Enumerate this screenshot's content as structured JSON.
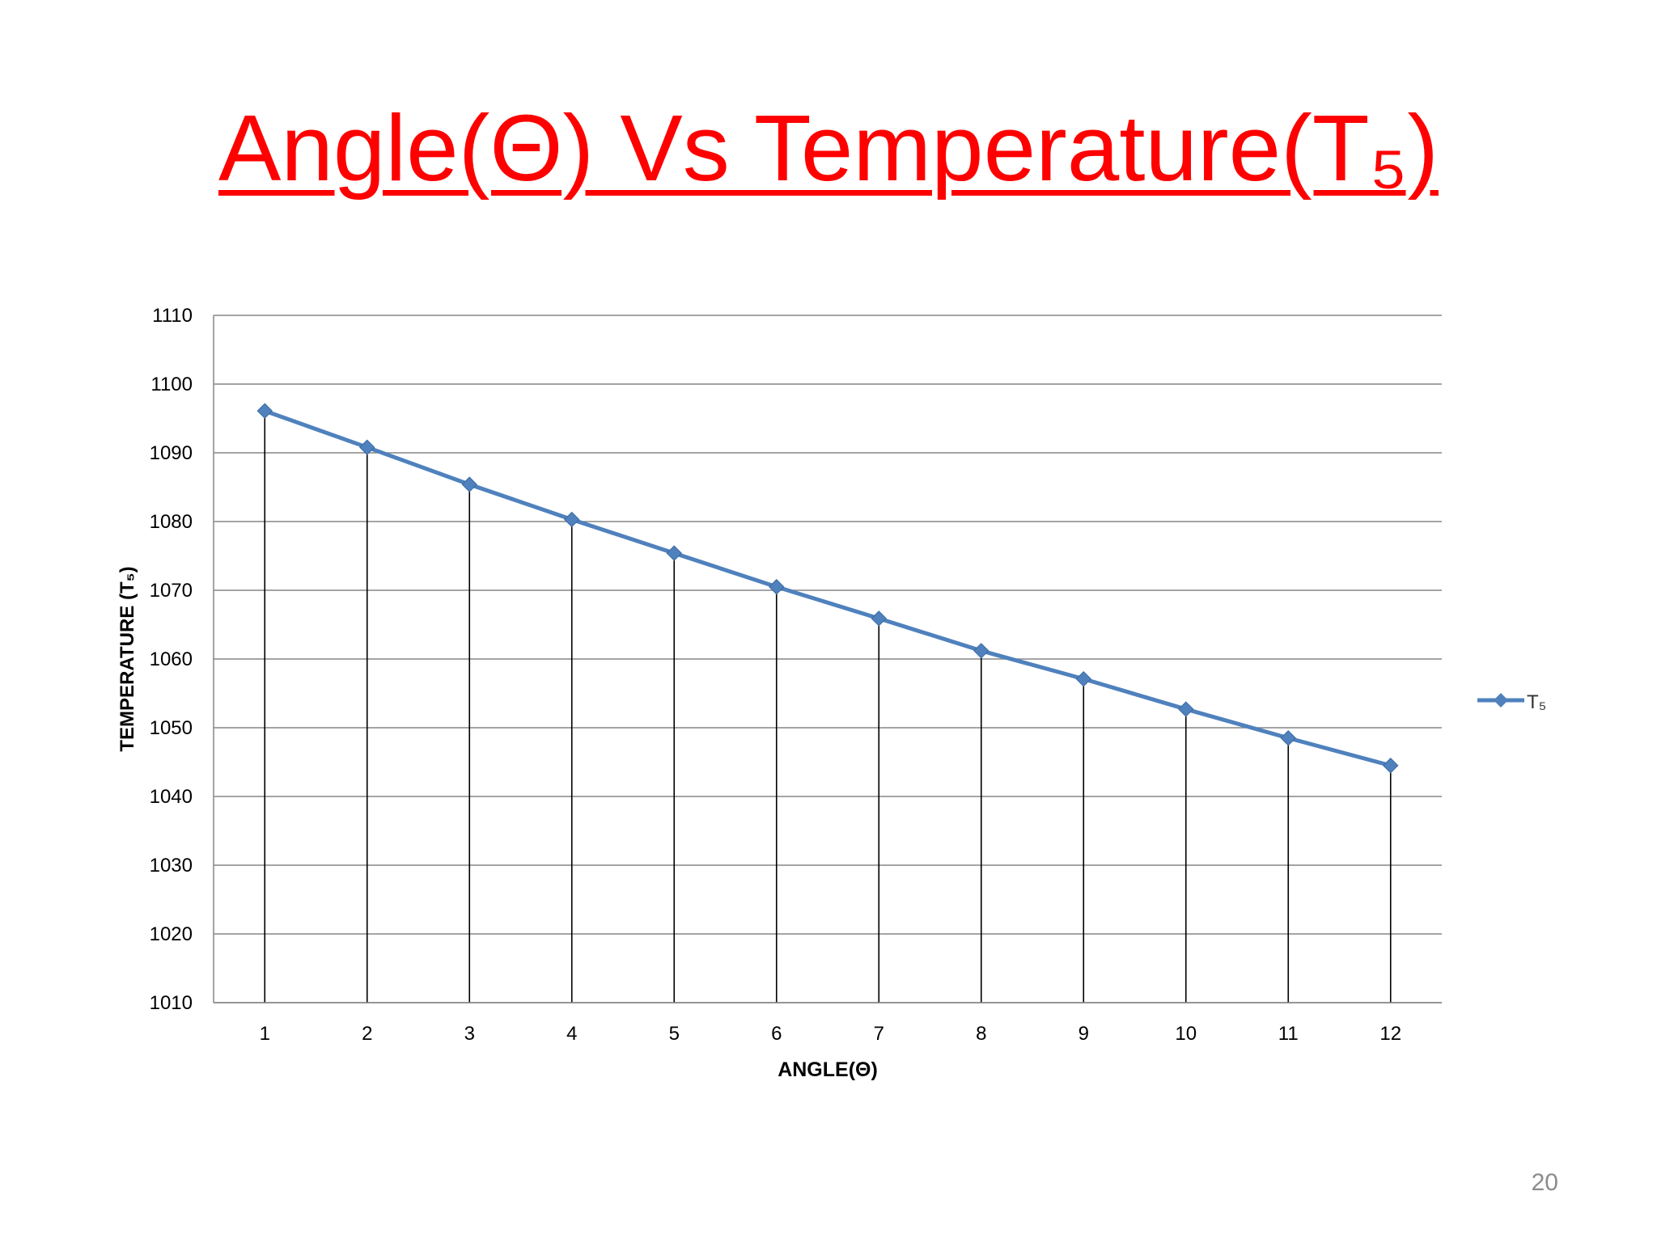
{
  "slide": {
    "title": "Angle(Θ) Vs Temperature(T₅)",
    "page_number": "20"
  },
  "colors": {
    "title": "#ff0000",
    "series": "#4f81bd",
    "gridline": "#868686",
    "drop_line": "#000000"
  },
  "chart_data": {
    "type": "line",
    "title": "",
    "xlabel": "ANGLE(Θ)",
    "ylabel": "TEMPERATURE (T₅)",
    "categories": [
      "1",
      "2",
      "3",
      "4",
      "5",
      "6",
      "7",
      "8",
      "9",
      "10",
      "11",
      "12"
    ],
    "series": [
      {
        "name": "T₅",
        "marker": "diamond",
        "values": [
          1096.1,
          1090.8,
          1085.4,
          1080.3,
          1075.4,
          1070.5,
          1065.9,
          1061.2,
          1057.1,
          1052.7,
          1048.5,
          1044.5
        ]
      }
    ],
    "ylim": [
      1010,
      1110
    ],
    "y_ticks": [
      1010,
      1020,
      1030,
      1040,
      1050,
      1060,
      1070,
      1080,
      1090,
      1100,
      1110
    ],
    "grid": "horizontal",
    "drop_lines": true,
    "legend": "right"
  }
}
